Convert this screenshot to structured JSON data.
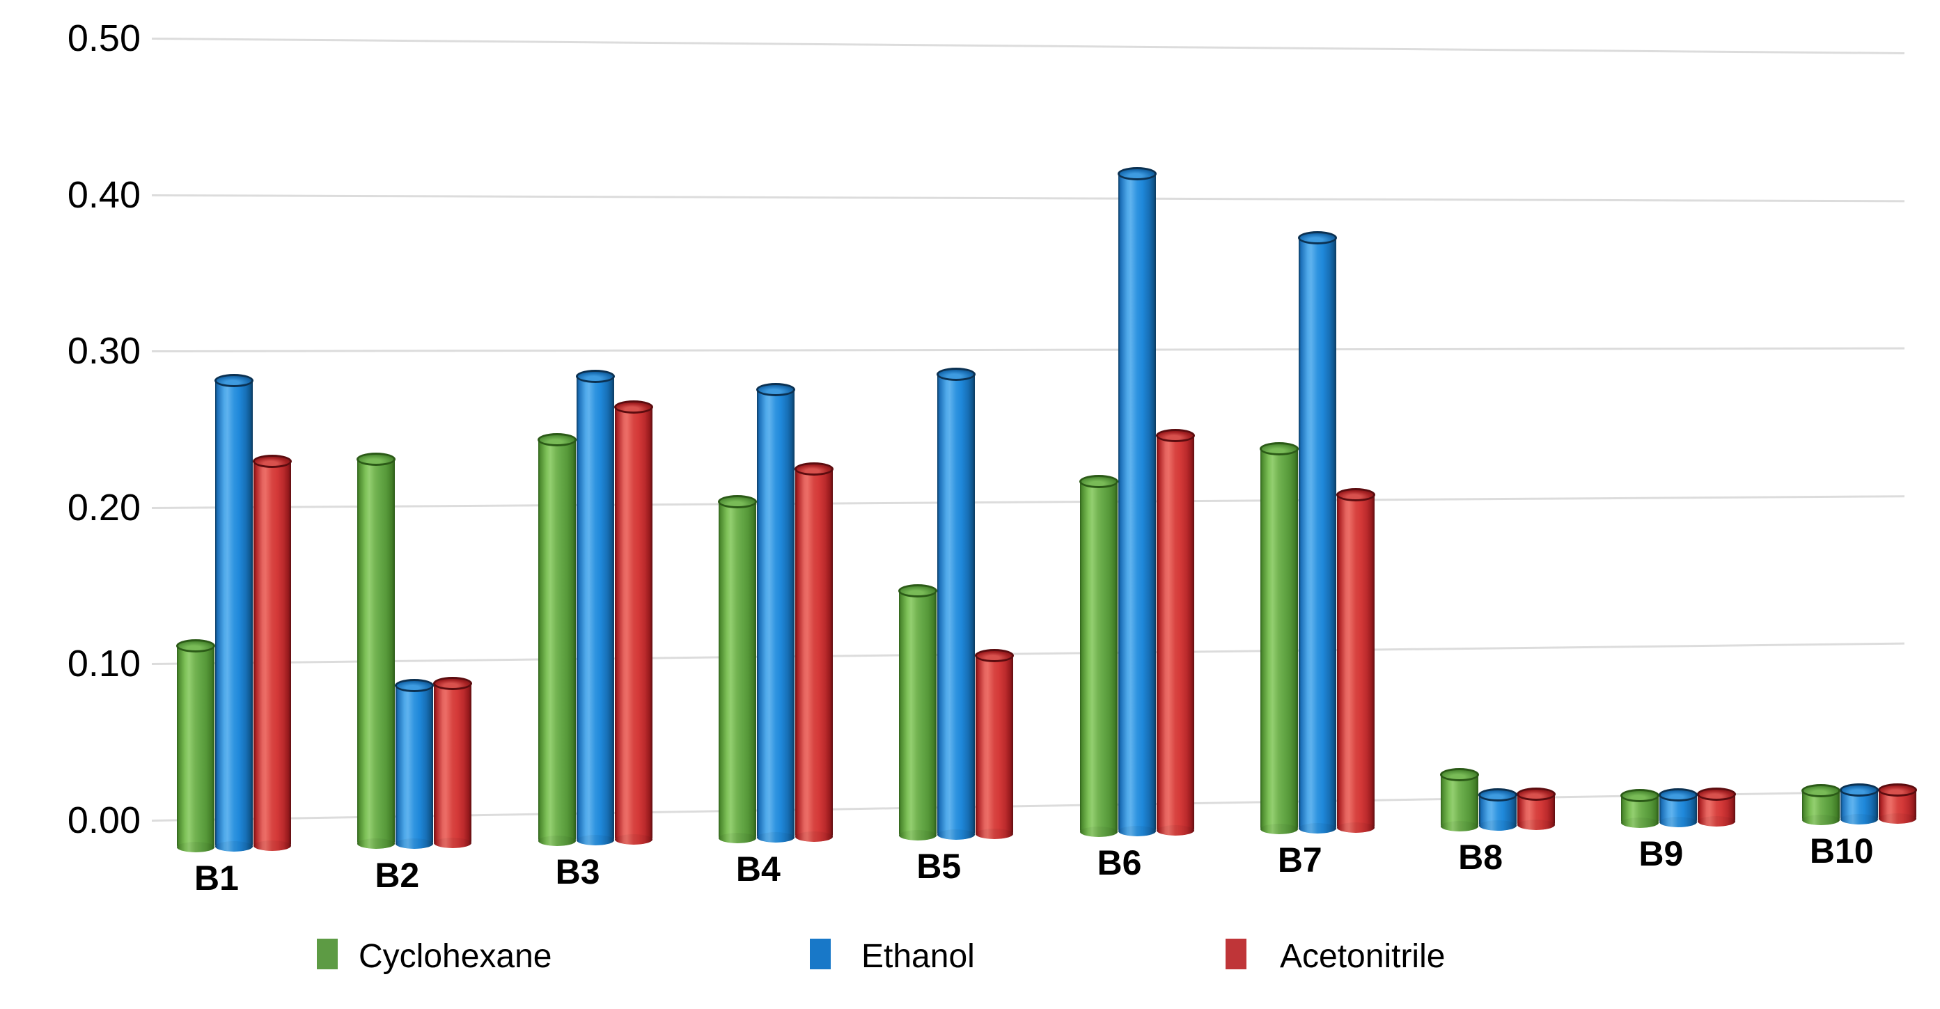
{
  "chart_data": {
    "type": "bar",
    "style": "3d-grouped",
    "title": "",
    "categories": [
      "B1",
      "B2",
      "B3",
      "B4",
      "B5",
      "B6",
      "B7",
      "B8",
      "B9",
      "B10"
    ],
    "series": [
      {
        "name": "Cyclohexane",
        "color": "#5d9b44",
        "values": [
          0.115,
          0.234,
          0.246,
          0.205,
          0.146,
          0.217,
          0.238,
          0.02,
          0.004,
          0.005
        ]
      },
      {
        "name": "Ethanol",
        "color": "#1878c8",
        "values": [
          0.285,
          0.088,
          0.287,
          0.278,
          0.288,
          0.42,
          0.378,
          0.006,
          0.004,
          0.005
        ]
      },
      {
        "name": "Acetonitrile",
        "color": "#bf3538",
        "values": [
          0.233,
          0.089,
          0.267,
          0.226,
          0.103,
          0.247,
          0.207,
          0.006,
          0.004,
          0.005
        ]
      }
    ],
    "xlabel": "",
    "ylabel": "",
    "ylim": [
      0,
      0.5
    ],
    "yticks": [
      "0.00",
      "0.10",
      "0.20",
      "0.30",
      "0.40",
      "0.50"
    ],
    "grid": true,
    "gridcolor": "#dcdcdc",
    "background": "#ffffff",
    "legend_position": "bottom"
  }
}
